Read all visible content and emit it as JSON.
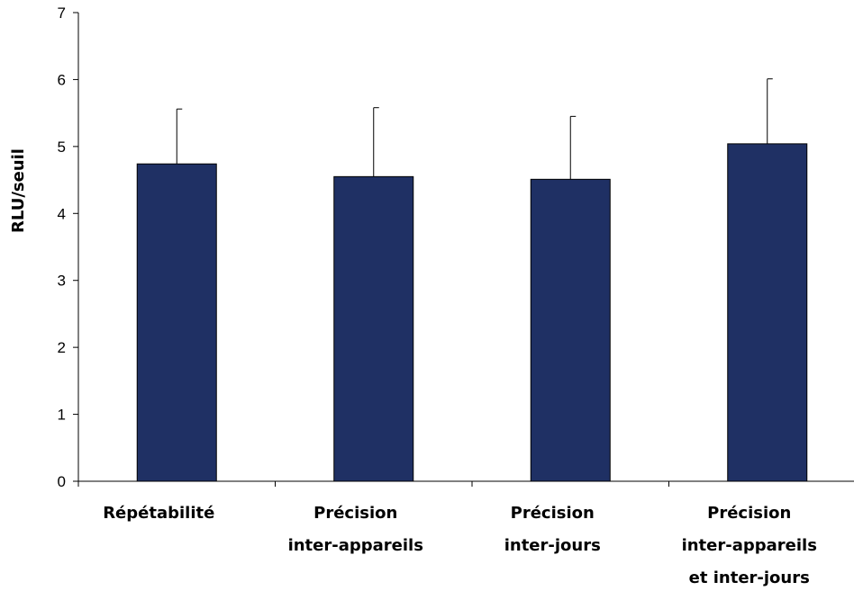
{
  "chart_data": {
    "type": "bar",
    "title": "",
    "xlabel": "",
    "ylabel": "RLU/seuil",
    "ylim": [
      0,
      7
    ],
    "yticks": [
      0,
      1,
      2,
      3,
      4,
      5,
      6,
      7
    ],
    "grid": false,
    "legend": "none",
    "categories": [
      [
        "Répétabilité"
      ],
      [
        "Précision",
        "inter-appareils"
      ],
      [
        "Précision",
        "inter-jours"
      ],
      [
        "Précision",
        "inter-appareils",
        "et inter-jours"
      ]
    ],
    "series": [
      {
        "values": [
          4.74,
          4.55,
          4.51,
          5.04
        ],
        "error_plus": [
          0.82,
          1.03,
          0.94,
          0.97
        ]
      }
    ],
    "colors": {
      "bar_fill": "#1f3064",
      "bar_stroke": "#000000",
      "axis": "#000000"
    }
  }
}
